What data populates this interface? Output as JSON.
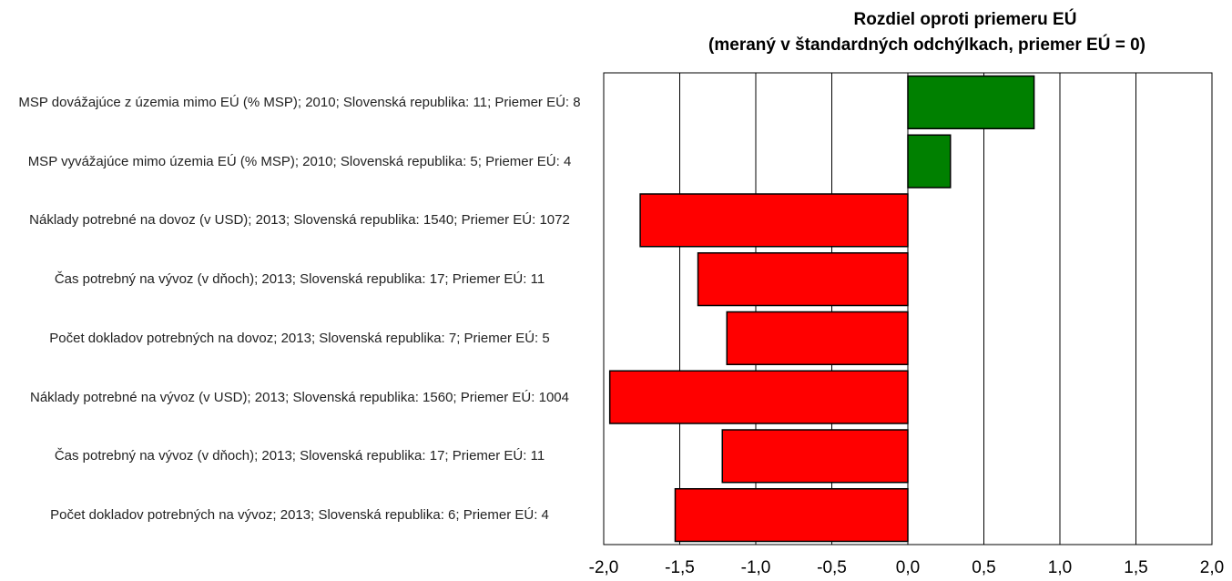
{
  "chart_data": {
    "type": "barh",
    "title": "Rozdiel oproti priemeru EÚ",
    "subtitle": "(meraný v štandardných odchýlkach, priemer EÚ = 0)",
    "categories": [
      "MSP dovážajúce z územia mimo EÚ (% MSP); 2010; Slovenská republika: 11; Priemer EÚ: 8",
      "MSP vyvážajúce mimo územia EÚ (% MSP); 2010; Slovenská republika: 5; Priemer EÚ: 4",
      "Náklady potrebné na dovoz (v USD); 2013; Slovenská republika: 1540; Priemer EÚ: 1072",
      "Čas potrebný na vývoz (v dňoch); 2013; Slovenská republika: 17; Priemer EÚ: 11",
      "Počet dokladov potrebných na dovoz; 2013; Slovenská republika: 7; Priemer EÚ: 5",
      "Náklady potrebné na vývoz (v USD); 2013; Slovenská republika: 1560; Priemer EÚ: 1004",
      "Čas potrebný na vývoz (v dňoch); 2013; Slovenská republika: 17; Priemer EÚ: 11",
      "Počet dokladov potrebných na vývoz; 2013; Slovenská republika: 6; Priemer EÚ: 4"
    ],
    "values": [
      0.83,
      0.28,
      -1.76,
      -1.38,
      -1.19,
      -1.96,
      -1.22,
      -1.53
    ],
    "colors": [
      "#008000",
      "#008000",
      "#ff0000",
      "#ff0000",
      "#ff0000",
      "#ff0000",
      "#ff0000",
      "#ff0000"
    ],
    "xlim": [
      -2,
      2
    ],
    "xticks": [
      {
        "value": -2,
        "label": "-2,0"
      },
      {
        "value": -1.5,
        "label": "-1,5"
      },
      {
        "value": -1,
        "label": "-1,0"
      },
      {
        "value": -0.5,
        "label": "-0,5"
      },
      {
        "value": 0,
        "label": "0,0"
      },
      {
        "value": 0.5,
        "label": "0,5"
      },
      {
        "value": 1,
        "label": "1,0"
      },
      {
        "value": 1.5,
        "label": "1,5"
      },
      {
        "value": 2,
        "label": "2,0"
      }
    ],
    "grid": true
  }
}
